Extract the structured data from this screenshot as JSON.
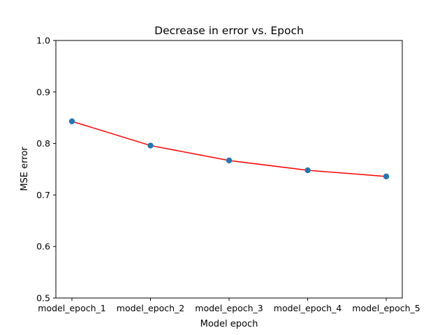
{
  "chart_data": {
    "type": "line",
    "title": "Decrease in error vs. Epoch",
    "xlabel": "Model epoch",
    "ylabel": "MSE error",
    "categories": [
      "model_epoch_1",
      "model_epoch_2",
      "model_epoch_3",
      "model_epoch_4",
      "model_epoch_5"
    ],
    "series": [
      {
        "values": [
          0.843,
          0.796,
          0.767,
          0.748,
          0.736
        ],
        "line_color": "#ff0000",
        "marker_color": "#1f77b4"
      }
    ],
    "ylim": [
      0.5,
      1.0
    ],
    "yticks": [
      "0.5",
      "0.6",
      "0.7",
      "0.8",
      "0.9",
      "1.0"
    ],
    "grid": false,
    "legend": "none"
  }
}
